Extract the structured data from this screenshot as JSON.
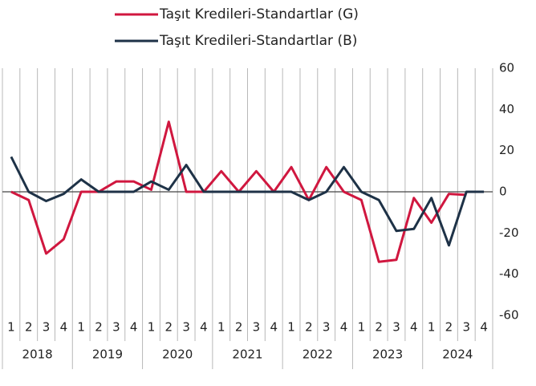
{
  "chart_data": {
    "type": "line",
    "categories": [
      "1",
      "2",
      "3",
      "4",
      "1",
      "2",
      "3",
      "4",
      "1",
      "2",
      "3",
      "4",
      "1",
      "2",
      "3",
      "4",
      "1",
      "2",
      "3",
      "4",
      "1",
      "2",
      "3",
      "4",
      "1",
      "2",
      "3",
      "4"
    ],
    "groups": [
      "2018",
      "2019",
      "2020",
      "2021",
      "2022",
      "2023",
      "2024"
    ],
    "series": [
      {
        "name": "Taşıt Kredileri-Standartlar (G)",
        "color": "#d0173f",
        "values": [
          0,
          -4,
          -30,
          -23,
          0,
          0,
          5,
          5,
          1,
          34,
          0,
          0,
          10,
          0,
          10,
          0,
          12,
          -4,
          12,
          0,
          -4,
          -34,
          -33,
          -3,
          -15,
          -1,
          -1.5,
          null
        ]
      },
      {
        "name": "Taşıt Kredileri-Standartlar (B)",
        "color": "#1e3247",
        "values": [
          17,
          0,
          -4.5,
          -1,
          6,
          0,
          0,
          0,
          5,
          1,
          13,
          0,
          0,
          0,
          0,
          0,
          0,
          -4,
          0,
          12,
          0,
          -4,
          -19,
          -18,
          -3,
          -26,
          0,
          0
        ]
      }
    ],
    "ylim": [
      -60,
      60
    ],
    "yticks": [
      -60,
      -40,
      -20,
      0,
      20,
      40,
      60
    ],
    "grid": true,
    "legend": "top"
  }
}
